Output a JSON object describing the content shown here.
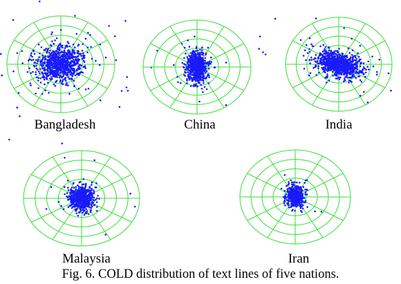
{
  "figure": {
    "caption": "Fig. 6. COLD distribution of text lines of five nations.",
    "grid_color": "#33dd33",
    "point_color": "#1a1aff",
    "plots": [
      {
        "label": "Bangladesh"
      },
      {
        "label": "China"
      },
      {
        "label": "India"
      },
      {
        "label": "Malaysia"
      },
      {
        "label": "Iran"
      }
    ]
  }
}
